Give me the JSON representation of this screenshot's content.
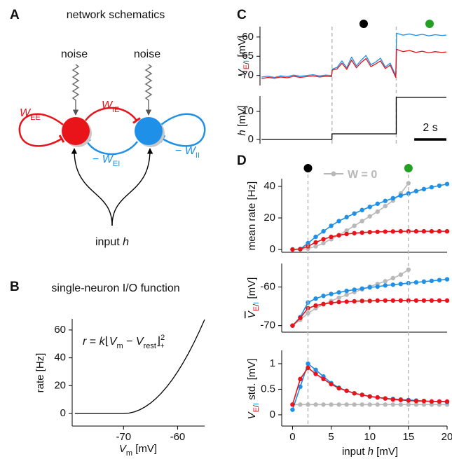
{
  "panel_letters": [
    "A",
    "B",
    "C",
    "D"
  ],
  "schematic": {
    "title": "network schematics",
    "noise_labels": [
      "noise",
      "noise"
    ],
    "w_ee": [
      "W",
      "EE"
    ],
    "w_ie": [
      "W",
      "IE"
    ],
    "w_ei": [
      "− ",
      "W",
      "EI"
    ],
    "w_ii": [
      "− ",
      "W",
      "II"
    ],
    "input_label": [
      "input ",
      "h"
    ]
  },
  "chart_data": [
    {
      "type": "line",
      "title": "single-neuron I/O function",
      "annotation": [
        "r",
        " = ",
        "k",
        "⌊",
        "V",
        "m",
        " − ",
        "V",
        "rest",
        "⌋",
        "2",
        "+"
      ],
      "xlabel": [
        "V",
        "m",
        " [mV]"
      ],
      "ylabel": "rate [Hz]",
      "x": [
        -79,
        -76,
        -73,
        -70,
        -69,
        -68,
        -67,
        -66,
        -65,
        -64,
        -63,
        -62,
        -61,
        -60,
        -59,
        -58,
        -57,
        -56,
        -55
      ],
      "series": [
        {
          "color": "#000000",
          "values": [
            0,
            0,
            0,
            0,
            0.3,
            1.2,
            2.7,
            4.8,
            7.5,
            10.8,
            14.7,
            19.2,
            24.3,
            30,
            36.3,
            43.2,
            50.7,
            58.8,
            67.5
          ]
        }
      ],
      "xlim": [
        -79.5,
        -55
      ],
      "ylim": [
        -9,
        68
      ],
      "xticks": [
        -70,
        -60
      ],
      "yticks": [
        0,
        20,
        40,
        60
      ]
    },
    {
      "type": "line",
      "ylabel": [
        "V",
        "E",
        "/",
        "I",
        " [mV]"
      ],
      "x": [
        0.1,
        0.5,
        0.9,
        1.3,
        1.7,
        2.1,
        2.5,
        2.9,
        3.3,
        3.7,
        4.1,
        4.45,
        4.5,
        4.8,
        5.1,
        5.4,
        5.7,
        6.0,
        6.3,
        6.6,
        6.9,
        7.2,
        7.5,
        7.8,
        8.1,
        8.45,
        8.5,
        8.9,
        9.3,
        9.7,
        10.1,
        10.5,
        10.9,
        11.3,
        11.6
      ],
      "series": [
        {
          "color": "#1e90e8",
          "values": [
            -70.4,
            -70.2,
            -70.5,
            -70.1,
            -70.3,
            -69.9,
            -70.2,
            -70.0,
            -69.8,
            -70.1,
            -69.9,
            -70.0,
            -68.3,
            -67.9,
            -66.2,
            -68.0,
            -65.2,
            -67.5,
            -66.0,
            -64.8,
            -67.2,
            -66.5,
            -65.5,
            -67.8,
            -66.8,
            -70.0,
            -59.0,
            -59.5,
            -59.2,
            -59.6,
            -59.3,
            -59.7,
            -59.4,
            -59.6,
            -59.5
          ]
        },
        {
          "color": "#e8141a",
          "values": [
            -70.8,
            -70.5,
            -70.7,
            -70.4,
            -70.6,
            -70.2,
            -70.5,
            -70.3,
            -70.1,
            -70.4,
            -70.2,
            -70.3,
            -68.6,
            -68.3,
            -66.8,
            -68.4,
            -66.0,
            -68.0,
            -66.6,
            -65.6,
            -67.7,
            -67.0,
            -66.2,
            -68.2,
            -67.3,
            -70.5,
            -63.2,
            -63.8,
            -63.5,
            -64.0,
            -63.7,
            -64.1,
            -63.8,
            -64.0,
            -63.9
          ]
        }
      ],
      "xlim": [
        0,
        11.6
      ],
      "ylim": [
        -72.6,
        -57.3
      ],
      "yticks": [
        -60,
        -65,
        -70
      ],
      "vlines": [
        4.48,
        8.48
      ]
    },
    {
      "type": "line",
      "ylabel": [
        "h",
        " [mV]"
      ],
      "x": [
        0.1,
        4.48,
        4.48,
        8.48,
        8.48,
        11.6
      ],
      "series": [
        {
          "color": "#000000",
          "values": [
            0,
            0,
            2,
            2,
            15,
            15
          ]
        }
      ],
      "xlim": [
        0,
        11.6
      ],
      "ylim": [
        -1.5,
        15.5
      ],
      "yticks": [
        0,
        10
      ],
      "scalebar": {
        "value": 2,
        "label": "2 s"
      }
    },
    {
      "type": "line",
      "ylabel": "mean rate [Hz]",
      "markers": true,
      "x": [
        0,
        1,
        2,
        3,
        4,
        5,
        6,
        7,
        8,
        9,
        10,
        11,
        12,
        13,
        14,
        15,
        16,
        17,
        18,
        19,
        20
      ],
      "series": [
        {
          "name": "W = 0",
          "color": "#b8b8b8",
          "values": [
            0,
            0,
            0.5,
            2,
            4,
            6.5,
            9,
            12,
            15,
            18,
            21,
            24,
            27.5,
            31,
            35.5,
            42,
            null,
            null,
            null,
            null,
            null
          ]
        },
        {
          "color": "#1e90e8",
          "values": [
            0,
            0.3,
            4,
            8,
            11.5,
            15,
            18,
            20.5,
            22.8,
            25,
            27,
            29,
            30.8,
            32.5,
            34.2,
            35.5,
            37,
            38.3,
            39.5,
            40.5,
            41.5
          ]
        },
        {
          "color": "#e8141a",
          "values": [
            0,
            0.2,
            2,
            4.5,
            6.5,
            8,
            9,
            9.8,
            10.3,
            10.7,
            11,
            11.2,
            11.3,
            11.4,
            11.5,
            11.5,
            11.5,
            11.5,
            11.5,
            11.5,
            11.5
          ]
        }
      ],
      "xlim": [
        -1.4,
        20
      ],
      "ylim": [
        -1.8,
        44.9
      ],
      "yticks": [
        0,
        20,
        40
      ]
    },
    {
      "type": "line",
      "ylabel": [
        "V",
        "E",
        "/",
        "I",
        " [mV]"
      ],
      "markers": true,
      "x": [
        0,
        1,
        2,
        3,
        4,
        5,
        6,
        7,
        8,
        9,
        10,
        11,
        12,
        13,
        14,
        15,
        16,
        17,
        18,
        19,
        20
      ],
      "series": [
        {
          "color": "#b8b8b8",
          "values": [
            -70,
            -68.5,
            -66.8,
            -65.5,
            -64.5,
            -63.6,
            -62.8,
            -62,
            -61.3,
            -60.6,
            -59.9,
            -59.2,
            -58.5,
            -57.7,
            -56.8,
            -55.5,
            null,
            null,
            null,
            null,
            null
          ]
        },
        {
          "color": "#1e90e8",
          "values": [
            -70,
            -67.8,
            -64,
            -63,
            -62.3,
            -61.8,
            -61.4,
            -61,
            -60.7,
            -60.4,
            -60.1,
            -59.9,
            -59.6,
            -59.4,
            -59.2,
            -59,
            -58.8,
            -58.6,
            -58.4,
            -58.2,
            -58
          ]
        },
        {
          "color": "#e8141a",
          "values": [
            -70,
            -68,
            -65.5,
            -64.8,
            -64.4,
            -64.1,
            -63.9,
            -63.8,
            -63.7,
            -63.6,
            -63.6,
            -63.5,
            -63.5,
            -63.5,
            -63.5,
            -63.5,
            -63.5,
            -63.5,
            -63.5,
            -63.5,
            -63.5
          ]
        }
      ],
      "xlim": [
        -1.4,
        20
      ],
      "ylim": [
        -71.7,
        -53.9
      ],
      "yticks": [
        -70,
        -60
      ]
    },
    {
      "type": "line",
      "ylabel": [
        "V",
        "E",
        "/",
        "I",
        " std. [mV]"
      ],
      "xlabel": [
        "input ",
        "h",
        " [mV]"
      ],
      "markers": true,
      "x": [
        0,
        1,
        2,
        3,
        4,
        5,
        6,
        7,
        8,
        9,
        10,
        11,
        12,
        13,
        14,
        15,
        16,
        17,
        18,
        19,
        20
      ],
      "series": [
        {
          "color": "#b8b8b8",
          "values": [
            0.2,
            0.2,
            0.2,
            0.2,
            0.2,
            0.2,
            0.2,
            0.2,
            0.2,
            0.2,
            0.2,
            0.2,
            0.2,
            0.2,
            0.2,
            0.2,
            0.2,
            0.2,
            0.2,
            0.2,
            0.2
          ]
        },
        {
          "color": "#1e90e8",
          "values": [
            0.1,
            0.55,
            1.0,
            0.88,
            0.75,
            0.62,
            0.53,
            0.47,
            0.42,
            0.39,
            0.36,
            0.34,
            0.32,
            0.31,
            0.3,
            0.29,
            0.28,
            0.27,
            0.26,
            0.26,
            0.25
          ]
        },
        {
          "color": "#e8141a",
          "values": [
            0.2,
            0.7,
            0.92,
            0.8,
            0.7,
            0.6,
            0.52,
            0.47,
            0.42,
            0.39,
            0.36,
            0.34,
            0.32,
            0.3,
            0.29,
            0.28,
            0.27,
            0.27,
            0.26,
            0.26,
            0.26
          ]
        }
      ],
      "xlim": [
        -1.4,
        20
      ],
      "ylim": [
        -0.22,
        1.26
      ],
      "yticks": [
        0,
        0.5,
        1
      ],
      "xticks": [
        0,
        5,
        10,
        15,
        20
      ],
      "vlines": [
        2,
        15
      ],
      "vline_colors": [
        "#000000",
        "#22a022"
      ]
    }
  ]
}
